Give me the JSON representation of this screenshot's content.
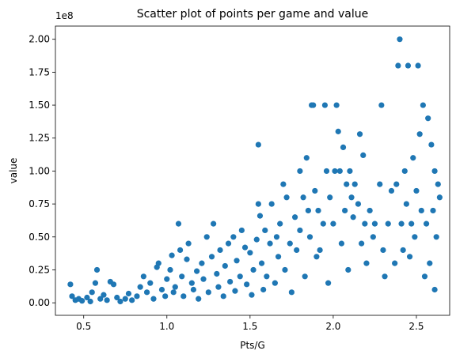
{
  "chart_data": {
    "type": "scatter",
    "title": "Scatter plot of points per game and value",
    "xlabel": "Pts/G",
    "ylabel": "value",
    "offset_label": "1e8",
    "xlim": [
      0.33,
      2.7
    ],
    "ylim": [
      -9500000,
      210000000
    ],
    "x_ticks": [
      0.5,
      1.0,
      1.5,
      2.0,
      2.5
    ],
    "x_tick_labels": [
      "0.5",
      "1.0",
      "1.5",
      "2.0",
      "2.5"
    ],
    "y_ticks": [
      0,
      25000000,
      50000000,
      75000000,
      100000000,
      125000000,
      150000000,
      175000000,
      200000000
    ],
    "y_tick_labels": [
      "0.00",
      "0.25",
      "0.50",
      "0.75",
      "1.00",
      "1.25",
      "1.50",
      "1.75",
      "2.00"
    ],
    "grid": false,
    "marker_color": "#1f77b4",
    "series": [
      {
        "points": [
          [
            0.42,
            14000000
          ],
          [
            0.43,
            5000000
          ],
          [
            0.45,
            2000000
          ],
          [
            0.47,
            3000000
          ],
          [
            0.49,
            1500000
          ],
          [
            0.52,
            4000000
          ],
          [
            0.54,
            1000000
          ],
          [
            0.55,
            8000000
          ],
          [
            0.57,
            15000000
          ],
          [
            0.58,
            25000000
          ],
          [
            0.6,
            3000000
          ],
          [
            0.62,
            6000000
          ],
          [
            0.64,
            2000000
          ],
          [
            0.66,
            16000000
          ],
          [
            0.68,
            14000000
          ],
          [
            0.7,
            4000000
          ],
          [
            0.72,
            1000000
          ],
          [
            0.75,
            3000000
          ],
          [
            0.77,
            7000000
          ],
          [
            0.79,
            2000000
          ],
          [
            0.82,
            5000000
          ],
          [
            0.84,
            12000000
          ],
          [
            0.86,
            20000000
          ],
          [
            0.88,
            8000000
          ],
          [
            0.9,
            15000000
          ],
          [
            0.92,
            3000000
          ],
          [
            0.94,
            27000000
          ],
          [
            0.95,
            30000000
          ],
          [
            0.97,
            10000000
          ],
          [
            0.99,
            5000000
          ],
          [
            1.0,
            18000000
          ],
          [
            1.02,
            25000000
          ],
          [
            1.03,
            36000000
          ],
          [
            1.04,
            8000000
          ],
          [
            1.05,
            12000000
          ],
          [
            1.07,
            60000000
          ],
          [
            1.08,
            40000000
          ],
          [
            1.09,
            20000000
          ],
          [
            1.1,
            5000000
          ],
          [
            1.12,
            33000000
          ],
          [
            1.13,
            45000000
          ],
          [
            1.15,
            15000000
          ],
          [
            1.16,
            10000000
          ],
          [
            1.18,
            24000000
          ],
          [
            1.19,
            3000000
          ],
          [
            1.21,
            30000000
          ],
          [
            1.22,
            18000000
          ],
          [
            1.24,
            50000000
          ],
          [
            1.25,
            8000000
          ],
          [
            1.27,
            35000000
          ],
          [
            1.28,
            60000000
          ],
          [
            1.3,
            22000000
          ],
          [
            1.31,
            12000000
          ],
          [
            1.32,
            40000000
          ],
          [
            1.34,
            5000000
          ],
          [
            1.35,
            28000000
          ],
          [
            1.37,
            45000000
          ],
          [
            1.38,
            16000000
          ],
          [
            1.4,
            50000000
          ],
          [
            1.41,
            9000000
          ],
          [
            1.42,
            32000000
          ],
          [
            1.44,
            20000000
          ],
          [
            1.45,
            55000000
          ],
          [
            1.47,
            42000000
          ],
          [
            1.48,
            14000000
          ],
          [
            1.5,
            38000000
          ],
          [
            1.51,
            6000000
          ],
          [
            1.52,
            25000000
          ],
          [
            1.54,
            48000000
          ],
          [
            1.55,
            120000000
          ],
          [
            1.55,
            75000000
          ],
          [
            1.56,
            66000000
          ],
          [
            1.57,
            30000000
          ],
          [
            1.58,
            10000000
          ],
          [
            1.59,
            55000000
          ],
          [
            1.6,
            20000000
          ],
          [
            1.62,
            45000000
          ],
          [
            1.63,
            75000000
          ],
          [
            1.65,
            15000000
          ],
          [
            1.66,
            50000000
          ],
          [
            1.67,
            35000000
          ],
          [
            1.68,
            60000000
          ],
          [
            1.7,
            90000000
          ],
          [
            1.71,
            25000000
          ],
          [
            1.72,
            80000000
          ],
          [
            1.74,
            45000000
          ],
          [
            1.75,
            8000000
          ],
          [
            1.77,
            65000000
          ],
          [
            1.78,
            40000000
          ],
          [
            1.8,
            100000000
          ],
          [
            1.8,
            55000000
          ],
          [
            1.82,
            80000000
          ],
          [
            1.83,
            20000000
          ],
          [
            1.84,
            110000000
          ],
          [
            1.85,
            70000000
          ],
          [
            1.86,
            50000000
          ],
          [
            1.87,
            150000000
          ],
          [
            1.88,
            150000000
          ],
          [
            1.89,
            85000000
          ],
          [
            1.9,
            35000000
          ],
          [
            1.91,
            70000000
          ],
          [
            1.92,
            40000000
          ],
          [
            1.94,
            60000000
          ],
          [
            1.95,
            150000000
          ],
          [
            1.96,
            100000000
          ],
          [
            1.97,
            15000000
          ],
          [
            1.98,
            80000000
          ],
          [
            2.0,
            60000000
          ],
          [
            2.01,
            100000000
          ],
          [
            2.02,
            150000000
          ],
          [
            2.03,
            130000000
          ],
          [
            2.04,
            100000000
          ],
          [
            2.05,
            45000000
          ],
          [
            2.06,
            118000000
          ],
          [
            2.07,
            70000000
          ],
          [
            2.08,
            90000000
          ],
          [
            2.09,
            25000000
          ],
          [
            2.1,
            100000000
          ],
          [
            2.11,
            80000000
          ],
          [
            2.12,
            65000000
          ],
          [
            2.13,
            90000000
          ],
          [
            2.15,
            75000000
          ],
          [
            2.16,
            128000000
          ],
          [
            2.17,
            45000000
          ],
          [
            2.18,
            112000000
          ],
          [
            2.19,
            60000000
          ],
          [
            2.2,
            30000000
          ],
          [
            2.22,
            70000000
          ],
          [
            2.24,
            50000000
          ],
          [
            2.25,
            60000000
          ],
          [
            2.28,
            90000000
          ],
          [
            2.29,
            150000000
          ],
          [
            2.3,
            40000000
          ],
          [
            2.31,
            20000000
          ],
          [
            2.33,
            60000000
          ],
          [
            2.35,
            85000000
          ],
          [
            2.37,
            30000000
          ],
          [
            2.38,
            90000000
          ],
          [
            2.39,
            180000000
          ],
          [
            2.4,
            200000000
          ],
          [
            2.41,
            60000000
          ],
          [
            2.42,
            40000000
          ],
          [
            2.43,
            100000000
          ],
          [
            2.44,
            75000000
          ],
          [
            2.45,
            180000000
          ],
          [
            2.46,
            35000000
          ],
          [
            2.47,
            60000000
          ],
          [
            2.48,
            110000000
          ],
          [
            2.49,
            50000000
          ],
          [
            2.5,
            85000000
          ],
          [
            2.51,
            180000000
          ],
          [
            2.52,
            128000000
          ],
          [
            2.53,
            70000000
          ],
          [
            2.54,
            150000000
          ],
          [
            2.55,
            20000000
          ],
          [
            2.56,
            60000000
          ],
          [
            2.57,
            140000000
          ],
          [
            2.58,
            30000000
          ],
          [
            2.59,
            120000000
          ],
          [
            2.6,
            70000000
          ],
          [
            2.61,
            100000000
          ],
          [
            2.62,
            50000000
          ],
          [
            2.63,
            90000000
          ],
          [
            2.64,
            80000000
          ],
          [
            2.61,
            10000000
          ]
        ]
      }
    ]
  }
}
